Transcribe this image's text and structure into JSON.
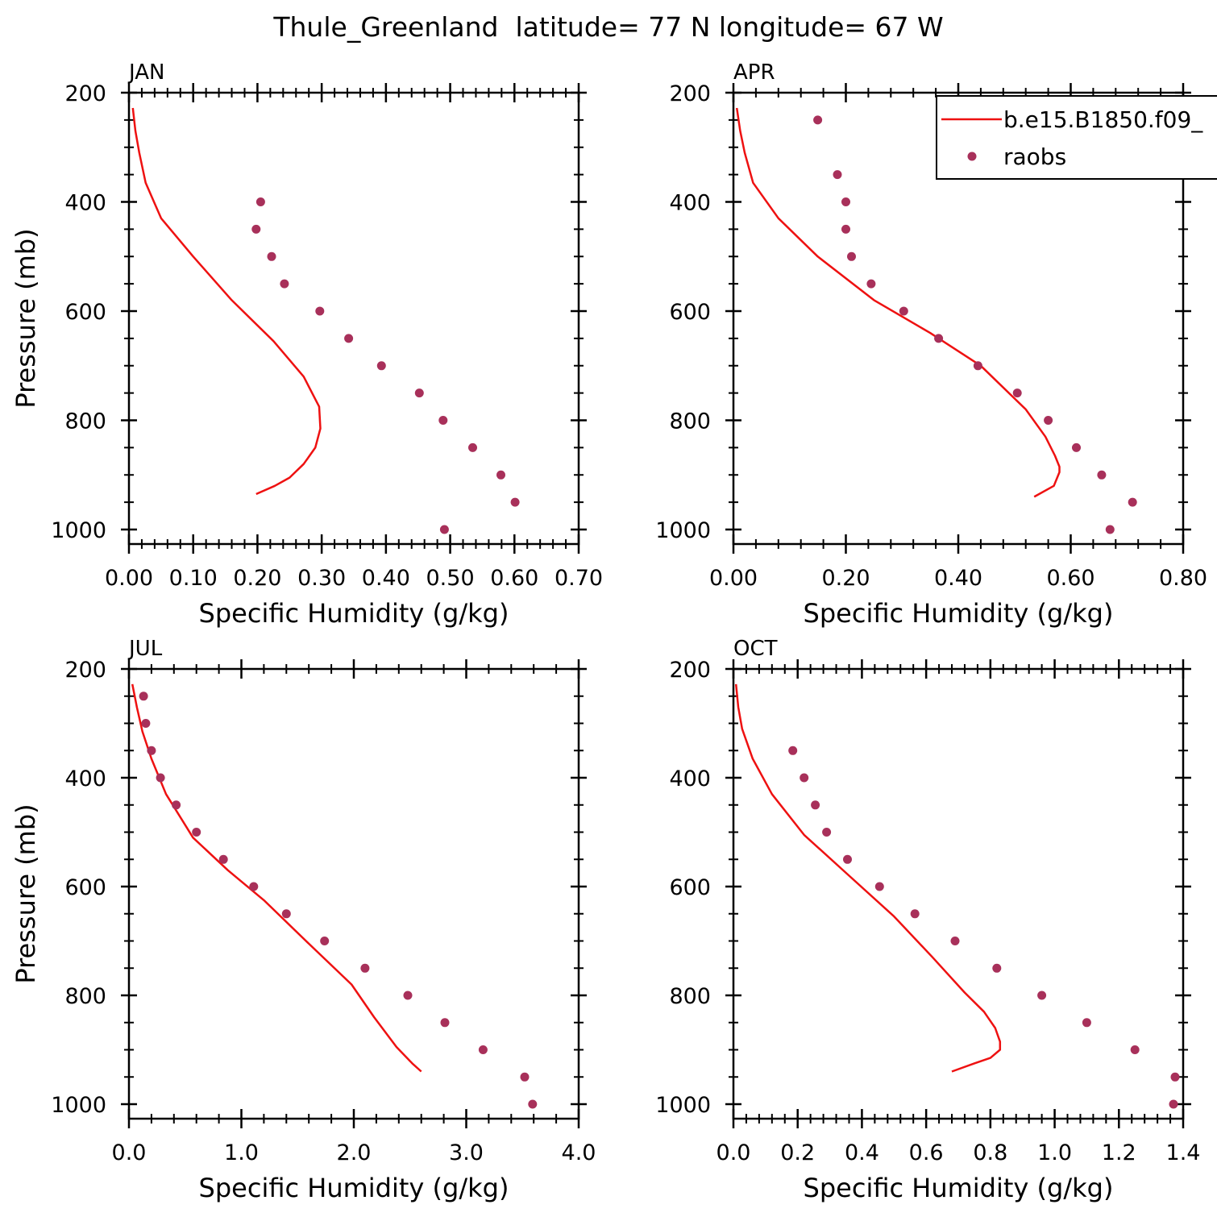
{
  "title": "Thule_Greenland  latitude= 77 N longitude= 67 W",
  "colors": {
    "model": "#ee1111",
    "obs": "#a8305a",
    "axes": "#000000"
  },
  "legend": {
    "model_label": "b.e15.B1850.f09_",
    "obs_label": "raobs",
    "placement": "top-right of APR panel"
  },
  "chart_data": [
    {
      "type": "line",
      "panel": "JAN",
      "xlabel": "Specific Humidity (g/kg)",
      "ylabel": "Pressure (mb)",
      "xlim": [
        0,
        0.7
      ],
      "ylim": [
        1000,
        200
      ],
      "xticks": [
        "0.00",
        "0.10",
        "0.20",
        "0.30",
        "0.40",
        "0.50",
        "0.60",
        "0.70"
      ],
      "xtick_values": [
        0,
        0.1,
        0.2,
        0.3,
        0.4,
        0.5,
        0.6,
        0.7
      ],
      "yticks": [
        "200",
        "400",
        "600",
        "800",
        "1000"
      ],
      "ytick_values": [
        200,
        400,
        600,
        800,
        1000
      ],
      "series": [
        {
          "name": "b.e15.B1850.f09_",
          "kind": "line",
          "points": [
            [
              0.006,
              228
            ],
            [
              0.01,
              270
            ],
            [
              0.016,
              310
            ],
            [
              0.026,
              365
            ],
            [
              0.05,
              430
            ],
            [
              0.1,
              500
            ],
            [
              0.16,
              580
            ],
            [
              0.225,
              655
            ],
            [
              0.272,
              720
            ],
            [
              0.296,
              775
            ],
            [
              0.298,
              815
            ],
            [
              0.29,
              850
            ],
            [
              0.272,
              880
            ],
            [
              0.25,
              905
            ],
            [
              0.227,
              920
            ],
            [
              0.198,
              935
            ]
          ]
        },
        {
          "name": "raobs",
          "kind": "scatter",
          "points": [
            [
              0.205,
              400
            ],
            [
              0.198,
              450
            ],
            [
              0.222,
              500
            ],
            [
              0.242,
              550
            ],
            [
              0.297,
              600
            ],
            [
              0.342,
              650
            ],
            [
              0.393,
              700
            ],
            [
              0.452,
              750
            ],
            [
              0.489,
              800
            ],
            [
              0.535,
              850
            ],
            [
              0.579,
              900
            ],
            [
              0.601,
              950
            ],
            [
              0.491,
              1000
            ]
          ]
        }
      ]
    },
    {
      "type": "line",
      "panel": "APR",
      "xlabel": "Specific Humidity (g/kg)",
      "ylabel": "",
      "xlim": [
        0,
        0.8
      ],
      "ylim": [
        1000,
        200
      ],
      "xticks": [
        "0.00",
        "0.20",
        "0.40",
        "0.60",
        "0.80"
      ],
      "xtick_values": [
        0,
        0.2,
        0.4,
        0.6,
        0.8
      ],
      "yticks": [
        "200",
        "400",
        "600",
        "800",
        "1000"
      ],
      "ytick_values": [
        200,
        400,
        600,
        800,
        1000
      ],
      "series": [
        {
          "name": "b.e15.B1850.f09_",
          "kind": "line",
          "points": [
            [
              0.006,
              228
            ],
            [
              0.012,
              270
            ],
            [
              0.02,
              310
            ],
            [
              0.035,
              365
            ],
            [
              0.08,
              430
            ],
            [
              0.15,
              500
            ],
            [
              0.25,
              580
            ],
            [
              0.35,
              640
            ],
            [
              0.44,
              700
            ],
            [
              0.52,
              780
            ],
            [
              0.555,
              830
            ],
            [
              0.572,
              865
            ],
            [
              0.58,
              885
            ],
            [
              0.58,
              895
            ],
            [
              0.57,
              920
            ],
            [
              0.535,
              940
            ]
          ]
        },
        {
          "name": "raobs",
          "kind": "scatter",
          "points": [
            [
              0.15,
              250
            ],
            [
              0.185,
              350
            ],
            [
              0.2,
              400
            ],
            [
              0.2,
              450
            ],
            [
              0.21,
              500
            ],
            [
              0.245,
              550
            ],
            [
              0.303,
              600
            ],
            [
              0.365,
              650
            ],
            [
              0.435,
              700
            ],
            [
              0.505,
              750
            ],
            [
              0.56,
              800
            ],
            [
              0.61,
              850
            ],
            [
              0.655,
              900
            ],
            [
              0.71,
              950
            ],
            [
              0.67,
              1000
            ]
          ]
        }
      ]
    },
    {
      "type": "line",
      "panel": "JUL",
      "xlabel": "Specific Humidity (g/kg)",
      "ylabel": "Pressure (mb)",
      "xlim": [
        0,
        4.0
      ],
      "ylim": [
        1000,
        200
      ],
      "xticks": [
        "0.0",
        "1.0",
        "2.0",
        "3.0",
        "4.0"
      ],
      "xtick_values": [
        0,
        1,
        2,
        3,
        4
      ],
      "yticks": [
        "200",
        "400",
        "600",
        "800",
        "1000"
      ],
      "ytick_values": [
        200,
        400,
        600,
        800,
        1000
      ],
      "series": [
        {
          "name": "b.e15.B1850.f09_",
          "kind": "line",
          "points": [
            [
              0.03,
              228
            ],
            [
              0.07,
              270
            ],
            [
              0.12,
              315
            ],
            [
              0.2,
              365
            ],
            [
              0.33,
              430
            ],
            [
              0.57,
              510
            ],
            [
              0.88,
              570
            ],
            [
              1.2,
              625
            ],
            [
              1.6,
              705
            ],
            [
              1.98,
              780
            ],
            [
              2.18,
              840
            ],
            [
              2.38,
              895
            ],
            [
              2.52,
              925
            ],
            [
              2.6,
              940
            ]
          ]
        },
        {
          "name": "raobs",
          "kind": "scatter",
          "points": [
            [
              0.13,
              250
            ],
            [
              0.15,
              300
            ],
            [
              0.2,
              350
            ],
            [
              0.28,
              400
            ],
            [
              0.42,
              450
            ],
            [
              0.6,
              500
            ],
            [
              0.84,
              550
            ],
            [
              1.11,
              600
            ],
            [
              1.4,
              650
            ],
            [
              1.74,
              700
            ],
            [
              2.1,
              750
            ],
            [
              2.48,
              800
            ],
            [
              2.81,
              850
            ],
            [
              3.15,
              900
            ],
            [
              3.52,
              950
            ],
            [
              3.59,
              1000
            ]
          ]
        }
      ]
    },
    {
      "type": "line",
      "panel": "OCT",
      "xlabel": "Specific Humidity (g/kg)",
      "ylabel": "",
      "xlim": [
        0,
        1.4
      ],
      "ylim": [
        1000,
        200
      ],
      "xticks": [
        "0.0",
        "0.2",
        "0.4",
        "0.6",
        "0.8",
        "1.0",
        "1.2",
        "1.4"
      ],
      "xtick_values": [
        0,
        0.2,
        0.4,
        0.6,
        0.8,
        1.0,
        1.2,
        1.4
      ],
      "yticks": [
        "200",
        "400",
        "600",
        "800",
        "1000"
      ],
      "ytick_values": [
        200,
        400,
        600,
        800,
        1000
      ],
      "series": [
        {
          "name": "b.e15.B1850.f09_",
          "kind": "line",
          "points": [
            [
              0.008,
              228
            ],
            [
              0.015,
              270
            ],
            [
              0.027,
              310
            ],
            [
              0.06,
              365
            ],
            [
              0.12,
              430
            ],
            [
              0.22,
              505
            ],
            [
              0.36,
              580
            ],
            [
              0.5,
              655
            ],
            [
              0.62,
              730
            ],
            [
              0.72,
              795
            ],
            [
              0.78,
              830
            ],
            [
              0.815,
              860
            ],
            [
              0.83,
              885
            ],
            [
              0.83,
              900
            ],
            [
              0.8,
              915
            ],
            [
              0.75,
              925
            ],
            [
              0.68,
              940
            ]
          ]
        },
        {
          "name": "raobs",
          "kind": "scatter",
          "points": [
            [
              0.185,
              350
            ],
            [
              0.22,
              400
            ],
            [
              0.255,
              450
            ],
            [
              0.29,
              500
            ],
            [
              0.355,
              550
            ],
            [
              0.455,
              600
            ],
            [
              0.565,
              650
            ],
            [
              0.69,
              700
            ],
            [
              0.82,
              750
            ],
            [
              0.96,
              800
            ],
            [
              1.1,
              850
            ],
            [
              1.25,
              900
            ],
            [
              1.375,
              950
            ],
            [
              1.37,
              1000
            ]
          ]
        }
      ]
    }
  ]
}
